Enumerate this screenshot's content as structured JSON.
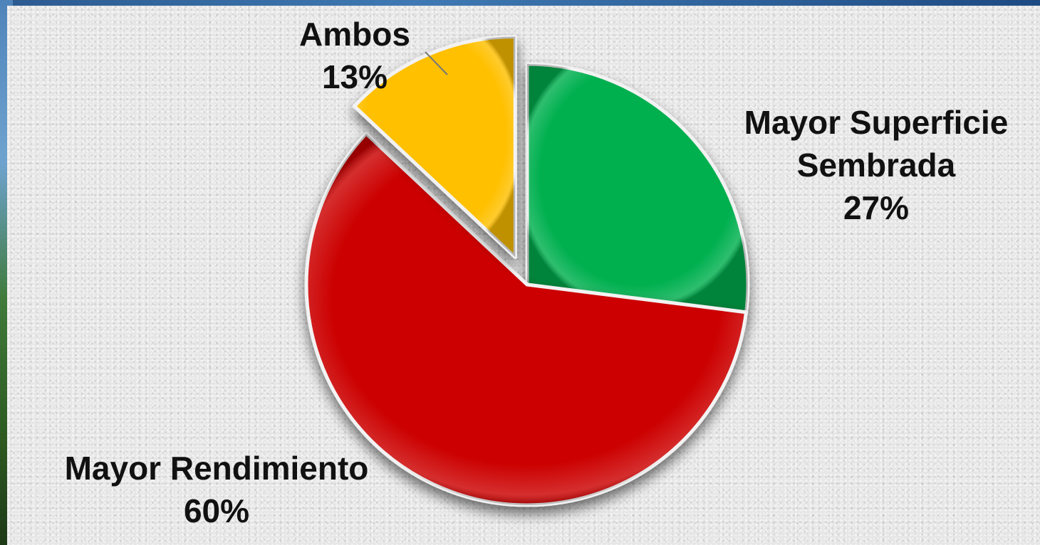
{
  "chart_data": {
    "type": "pie",
    "title": "",
    "slices": [
      {
        "label_lines": [
          "Mayor Superficie",
          "Sembrada"
        ],
        "percent_text": "27%",
        "value": 27,
        "color": "#00b050",
        "exploded": false
      },
      {
        "label_lines": [
          "Mayor Rendimiento"
        ],
        "percent_text": "60%",
        "value": 60,
        "color": "#cc0000",
        "exploded": false
      },
      {
        "label_lines": [
          "Ambos"
        ],
        "percent_text": "13%",
        "value": 13,
        "color": "#ffc000",
        "exploded": true
      }
    ],
    "legend": "none",
    "data_labels": "category and percentage"
  }
}
